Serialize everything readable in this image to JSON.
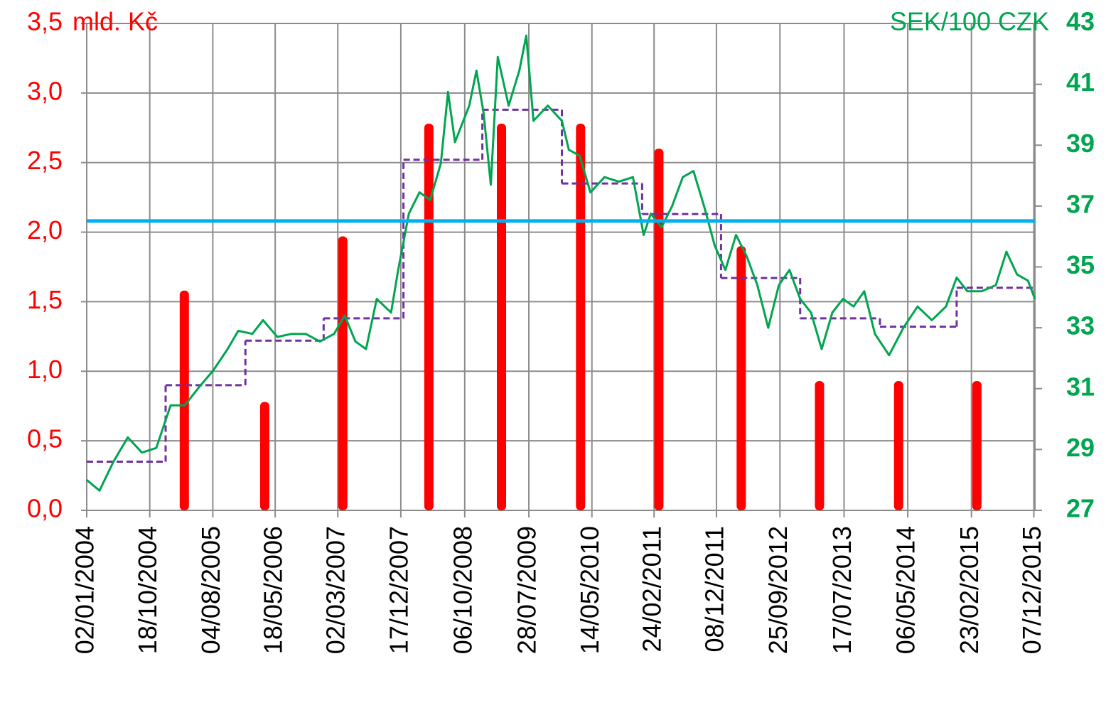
{
  "chart_data": {
    "type": "combo",
    "y_label": "mld. Kč",
    "y2_label": "SEK/100 CZK",
    "xticks": [
      "02/01/2004",
      "18/10/2004",
      "04/08/2005",
      "18/05/2006",
      "02/03/2007",
      "17/12/2007",
      "06/10/2008",
      "28/07/2009",
      "14/05/2010",
      "24/02/2011",
      "08/12/2011",
      "25/09/2012",
      "17/07/2013",
      "06/05/2014",
      "23/02/2015",
      "07/12/2015"
    ],
    "xlim": [
      "02/01/2004",
      "12/12/2015"
    ],
    "ylim": [
      0,
      3.5
    ],
    "yticks": [
      {
        "value": 0,
        "label": "0,0"
      },
      {
        "value": 0.5,
        "label": "0,5"
      },
      {
        "value": 1,
        "label": "1,0"
      },
      {
        "value": 1.5,
        "label": "1,5"
      },
      {
        "value": 2,
        "label": "2,0"
      },
      {
        "value": 2.5,
        "label": "2,5"
      },
      {
        "value": 3,
        "label": "3,0"
      },
      {
        "value": 3.5,
        "label": "3,5"
      }
    ],
    "y2lim": [
      27,
      43
    ],
    "y2ticks": [
      27,
      29,
      31,
      33,
      35,
      37,
      39,
      41,
      43
    ],
    "grid": true,
    "y_color": "#ff0000",
    "y2_color": "#00a550",
    "series": [
      {
        "type": "bar",
        "color": "#ff0000",
        "x": [
          "26/03/2005",
          "31/03/2006",
          "25/03/2007",
          "24/04/2008",
          "24/03/2009",
          "23/03/2010",
          "18/03/2011",
          "31/03/2012",
          "26/03/2013",
          "25/03/2014",
          "20/03/2015"
        ],
        "values": [
          1.58,
          0.78,
          1.97,
          2.78,
          2.78,
          2.78,
          2.6,
          1.9,
          0.93,
          0.93,
          0.93
        ]
      },
      {
        "type": "step",
        "color": "#7030a0",
        "dashed": true,
        "x": [
          "02/01/2004",
          "30/12/2004",
          "01/01/2006",
          "27/12/2006",
          "29/12/2007",
          "26/12/2008",
          "27/12/2009",
          "31/12/2010",
          "29/12/2011",
          "27/12/2012",
          "29/12/2013",
          "17/12/2014"
        ],
        "values": [
          0.35,
          0.9,
          1.22,
          1.38,
          2.52,
          2.88,
          2.35,
          2.13,
          1.67,
          1.38,
          1.32,
          1.6
        ]
      },
      {
        "type": "line",
        "color": "#00a550",
        "axis": "y2",
        "x": [
          "02/01/2004",
          "01/03/2004",
          "04/05/2004",
          "09/07/2004",
          "12/09/2004",
          "17/11/2004",
          "22/01/2005",
          "28/03/2005",
          "02/06/2005",
          "06/08/2005",
          "11/10/2005",
          "29/11/2005",
          "02/02/2006",
          "23/03/2006",
          "28/05/2006",
          "01/08/2006",
          "05/10/2006",
          "10/12/2006",
          "13/02/2007",
          "03/04/2007",
          "22/05/2007",
          "10/07/2007",
          "28/08/2007",
          "02/11/2007",
          "05/12/2007",
          "23/01/2008",
          "12/03/2008",
          "30/04/2008",
          "18/06/2008",
          "21/07/2008",
          "22/08/2008",
          "27/10/2008",
          "29/11/2008",
          "01/01/2009",
          "03/02/2009",
          "07/03/2009",
          "26/04/2009",
          "14/06/2009",
          "16/07/2009",
          "18/08/2009",
          "23/10/2009",
          "27/12/2009",
          "28/01/2010",
          "19/03/2010",
          "07/05/2010",
          "11/07/2010",
          "15/09/2010",
          "19/11/2010",
          "07/01/2011",
          "09/02/2011",
          "30/03/2011",
          "18/05/2011",
          "06/07/2011",
          "24/08/2011",
          "12/10/2011",
          "30/11/2011",
          "18/01/2012",
          "07/03/2012",
          "25/04/2012",
          "13/06/2012",
          "02/08/2012",
          "20/09/2012",
          "08/11/2012",
          "27/12/2012",
          "15/02/2013",
          "05/04/2013",
          "24/05/2013",
          "12/07/2013",
          "30/08/2013",
          "18/10/2013",
          "06/12/2013",
          "09/02/2014",
          "16/04/2014",
          "20/06/2014",
          "25/08/2014",
          "29/10/2014",
          "17/12/2014",
          "04/02/2015",
          "11/04/2015",
          "15/06/2015",
          "03/08/2015",
          "21/09/2015",
          "10/11/2015",
          "12/12/2015"
        ],
        "values": [
          28.0,
          27.65,
          28.6,
          29.4,
          28.9,
          29.05,
          30.45,
          30.45,
          31.05,
          31.6,
          32.3,
          32.9,
          32.8,
          33.25,
          32.7,
          32.8,
          32.8,
          32.55,
          32.8,
          33.4,
          32.55,
          32.3,
          33.95,
          33.5,
          34.9,
          36.75,
          37.45,
          37.2,
          38.4,
          40.75,
          39.1,
          40.3,
          41.45,
          40.05,
          37.7,
          41.9,
          40.3,
          41.45,
          42.6,
          39.8,
          40.3,
          39.8,
          38.85,
          38.65,
          37.45,
          37.95,
          37.8,
          37.95,
          36.05,
          36.75,
          36.3,
          37.0,
          37.95,
          38.15,
          37.0,
          35.7,
          34.9,
          36.05,
          35.35,
          34.4,
          33.0,
          34.4,
          34.9,
          33.95,
          33.5,
          32.3,
          33.5,
          33.95,
          33.7,
          34.2,
          32.8,
          32.1,
          33.0,
          33.7,
          33.25,
          33.7,
          34.65,
          34.2,
          34.2,
          34.4,
          35.5,
          34.75,
          34.55,
          33.95
        ]
      },
      {
        "type": "line",
        "color": "#00b0f0",
        "width": 5,
        "x": [
          "02/01/2004",
          "12/12/2015"
        ],
        "values": [
          2.08,
          2.08
        ]
      }
    ]
  }
}
